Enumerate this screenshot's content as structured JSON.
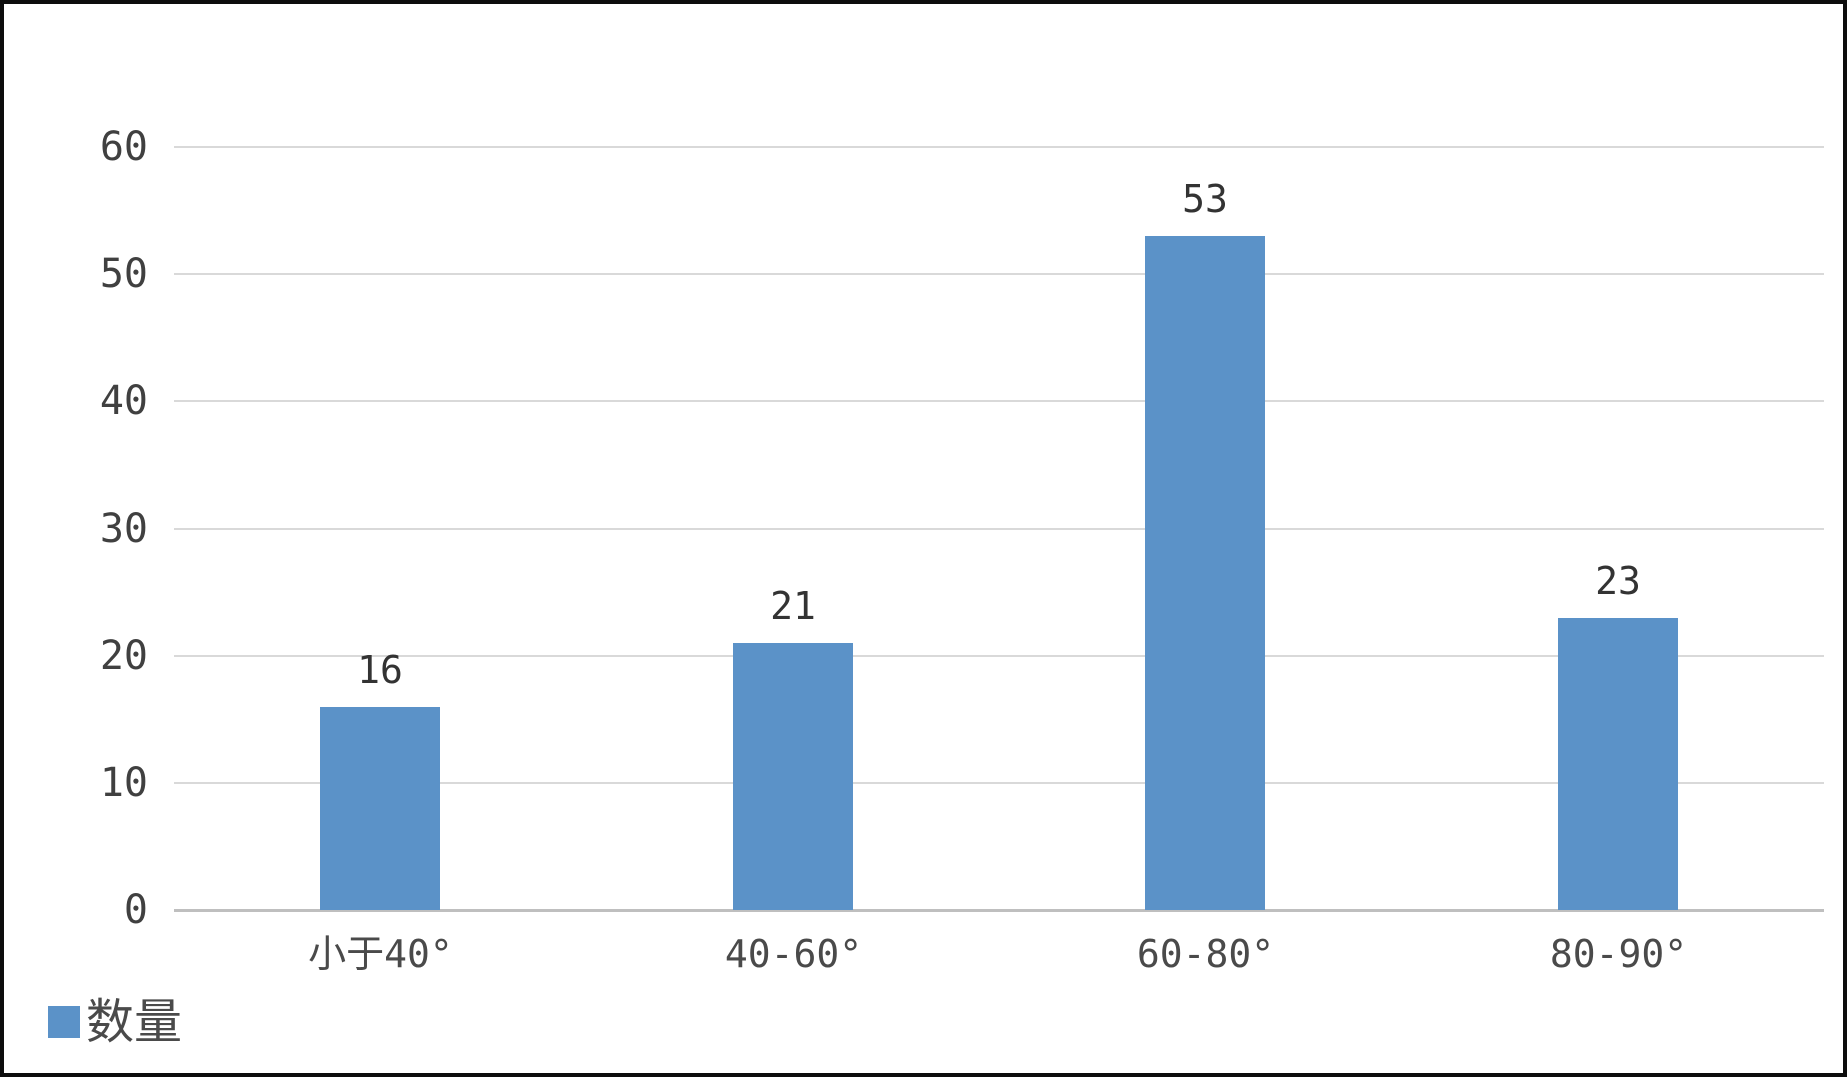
{
  "chart_data": {
    "type": "bar",
    "categories": [
      "小于40°",
      "40-60°",
      "60-80°",
      "80-90°"
    ],
    "series": [
      {
        "name": "数量",
        "values": [
          16,
          21,
          53,
          23
        ]
      }
    ],
    "data_labels": [
      "16",
      "21",
      "53",
      "23"
    ],
    "title": "",
    "xlabel": "",
    "ylabel": "",
    "ylim": [
      0,
      60
    ],
    "yticks": [
      0,
      10,
      20,
      30,
      40,
      50,
      60
    ],
    "grid": true,
    "legend_position": "bottom-left",
    "legend_entries": [
      "数量"
    ],
    "colors": {
      "bar": "#5B92C8",
      "gridline": "#D9D9D9",
      "axis_line": "#BFBFBF",
      "ytick_label": "#404040",
      "data_label": "#333333",
      "category_label": "#4A4A4A",
      "legend_label": "#4A4A4A",
      "background": "#FFFFFF",
      "frame_border": "#0D0D0D"
    }
  }
}
